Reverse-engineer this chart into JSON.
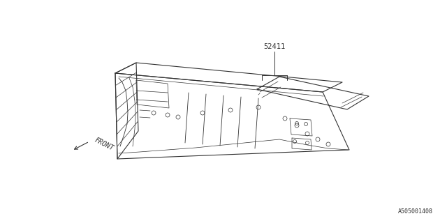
{
  "background_color": "#ffffff",
  "line_color": "#333333",
  "label_52411": "52411",
  "label_front": "FRONT",
  "label_code": "A505001408",
  "fig_width": 6.4,
  "fig_height": 3.2,
  "dpi": 100
}
